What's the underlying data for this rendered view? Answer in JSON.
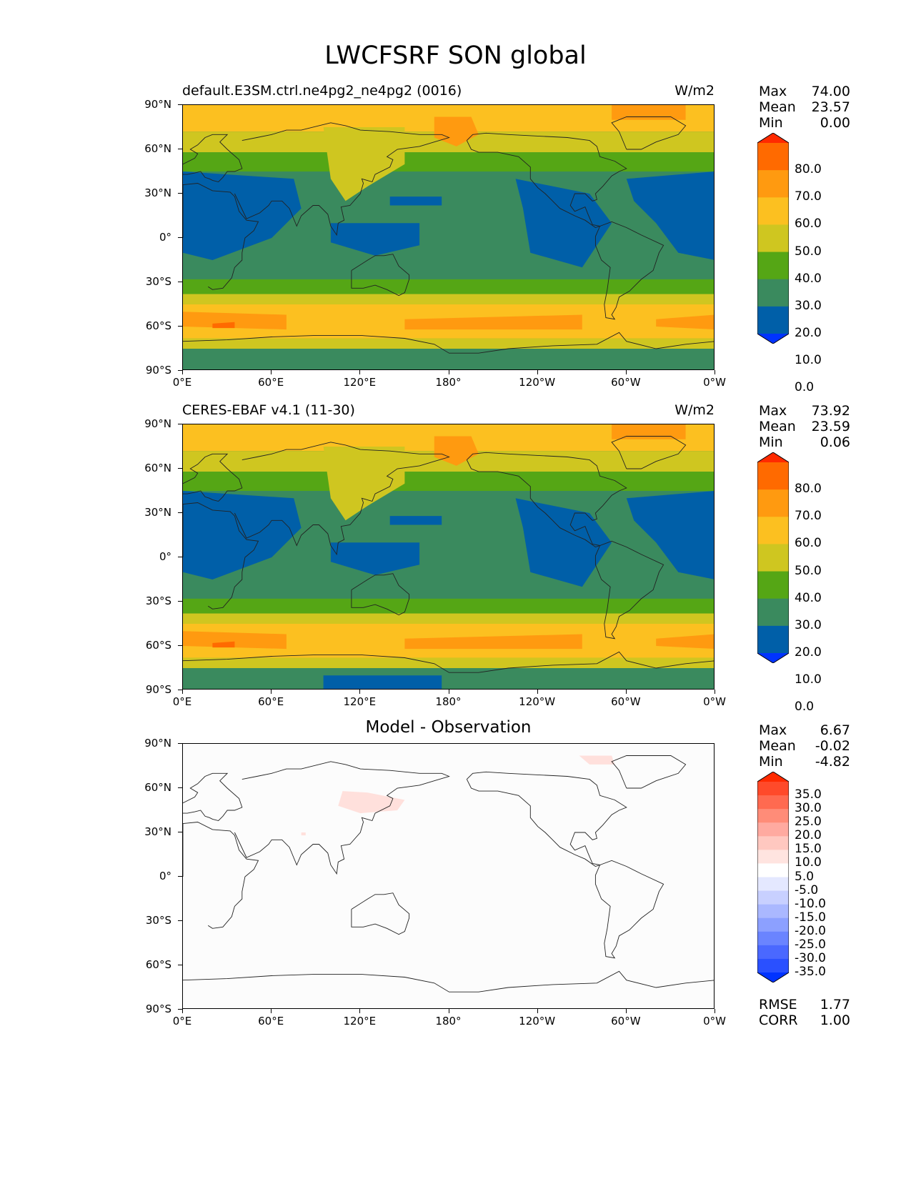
{
  "figure_title": "LWCFSRF SON global",
  "x_ticks": [
    "0°E",
    "60°E",
    "120°E",
    "180°",
    "120°W",
    "60°W",
    "0°W"
  ],
  "y_ticks": [
    "90°N",
    "60°N",
    "30°N",
    "0°",
    "30°S",
    "60°S",
    "90°S"
  ],
  "panels": [
    {
      "title_left": "default.E3SM.ctrl.ne4pg2_ne4pg2 (0016)",
      "title_right": "W/m2",
      "title_center": "",
      "stats": [
        {
          "label": "Max",
          "value": "74.00"
        },
        {
          "label": "Mean",
          "value": "23.57"
        },
        {
          "label": "Min",
          "value": "0.00"
        }
      ],
      "colorbar_labels": [
        "80.0",
        "70.0",
        "60.0",
        "50.0",
        "40.0",
        "30.0",
        "20.0",
        "10.0",
        "0.0"
      ],
      "colorbar_colors": [
        "#ff2a00",
        "#ff6a00",
        "#ff9a10",
        "#fcc020",
        "#cfc620",
        "#55a615",
        "#3a8a5e",
        "#005fa8",
        "#0033ff"
      ],
      "extra_stats": []
    },
    {
      "title_left": "CERES-EBAF v4.1 (11-30)",
      "title_right": "W/m2",
      "title_center": "",
      "stats": [
        {
          "label": "Max",
          "value": "73.92"
        },
        {
          "label": "Mean",
          "value": "23.59"
        },
        {
          "label": "Min",
          "value": "0.06"
        }
      ],
      "colorbar_labels": [
        "80.0",
        "70.0",
        "60.0",
        "50.0",
        "40.0",
        "30.0",
        "20.0",
        "10.0",
        "0.0"
      ],
      "colorbar_colors": [
        "#ff2a00",
        "#ff6a00",
        "#ff9a10",
        "#fcc020",
        "#cfc620",
        "#55a615",
        "#3a8a5e",
        "#005fa8",
        "#0033ff"
      ],
      "extra_stats": []
    },
    {
      "title_left": "",
      "title_right": "",
      "title_center": "Model - Observation",
      "stats": [
        {
          "label": "Max",
          "value": "6.67"
        },
        {
          "label": "Mean",
          "value": "-0.02"
        },
        {
          "label": "Min",
          "value": "-4.82"
        }
      ],
      "colorbar_labels": [
        "35.0",
        "30.0",
        "25.0",
        "20.0",
        "15.0",
        "10.0",
        "5.0",
        "-5.0",
        "-10.0",
        "-15.0",
        "-20.0",
        "-25.0",
        "-30.0",
        "-35.0"
      ],
      "colorbar_colors": [
        "#ff2a00",
        "#ff4a2a",
        "#ff6a50",
        "#ff8c78",
        "#ffaaa0",
        "#ffc8c0",
        "#ffe4e0",
        "#ffffff",
        "#e4e8ff",
        "#c8d0ff",
        "#aab8ff",
        "#8ca0ff",
        "#6a84ff",
        "#4a68ff",
        "#2a50ff",
        "#0033ff"
      ],
      "extra_stats": [
        {
          "label": "RMSE",
          "value": "1.77"
        },
        {
          "label": "CORR",
          "value": "1.00"
        }
      ]
    }
  ],
  "field_colors": {
    "lev0": "#005fa8",
    "lev10": "#3a8a5e",
    "lev20": "#55a615",
    "lev30": "#cfc620",
    "lev40": "#fcc020",
    "lev50": "#ff9a10",
    "lev60": "#ff6a00",
    "diff_pos": "#ffe0dc",
    "diff_bg": "#fcfcfc"
  }
}
